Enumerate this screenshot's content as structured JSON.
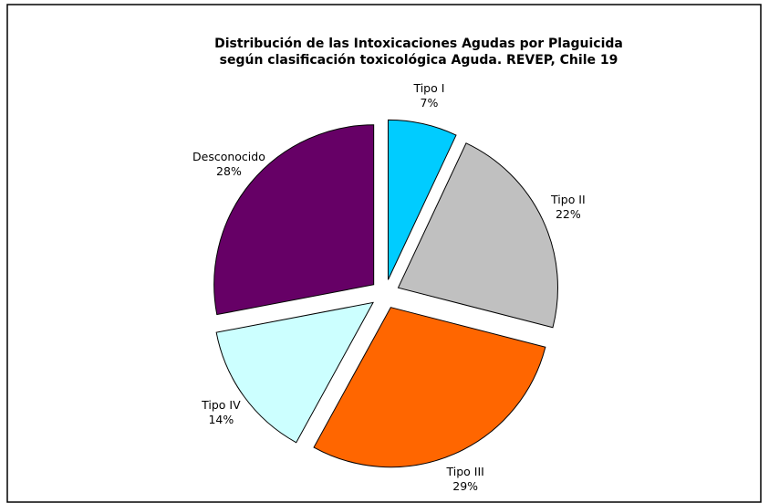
{
  "chart_data": {
    "type": "pie",
    "title": [
      "Distribución de las Intoxicaciones Agudas por Plaguicida",
      "según clasificación toxicológica Aguda. REVEP, Chile 19"
    ],
    "categories": [
      "Tipo I",
      "Tipo II",
      "Tipo III",
      "Tipo IV",
      "Desconocido"
    ],
    "values": [
      7,
      22,
      29,
      14,
      28
    ],
    "value_labels": [
      "7%",
      "22%",
      "29%",
      "14%",
      "28%"
    ],
    "colors": [
      "#00ccff",
      "#c0c0c0",
      "#ff6600",
      "#ccffff",
      "#660066"
    ]
  }
}
